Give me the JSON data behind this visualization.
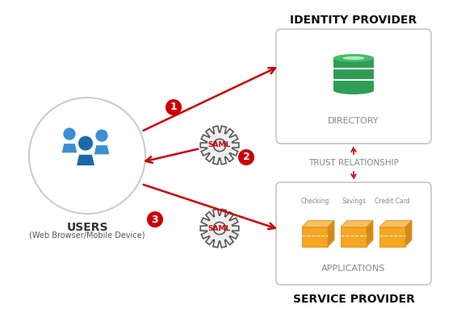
{
  "background_color": "#ffffff",
  "title_identity": "IDENTITY PROVIDER",
  "title_service": "SERVICE PROVIDER",
  "users_label": "USERS",
  "users_sublabel": "(Web Browser/Mobile Device)",
  "directory_label": "DIRECTORY",
  "applications_label": "APPLICATIONS",
  "trust_label": "TRUST RELATIONSHIP",
  "saml_label": "SAML",
  "app_labels": [
    "Checking",
    "Savings",
    "Credit Card"
  ],
  "arrow_color": "#cc0000",
  "gear_color": "#5a5a5a",
  "user_color_light": "#3b8fd4",
  "user_color_dark": "#1a6aaa",
  "db_color": "#2e9e54",
  "db_top_color": "#3dbf68",
  "app_color": "#f5a623",
  "app_top_color": "#f7c060",
  "app_dark_color": "#d4891a",
  "box_edge_color": "#bbbbbb",
  "number_bg": "#cc0000",
  "text_color": "#888888",
  "title_color": "#111111",
  "trust_line_color": "#cc0000",
  "users_circle_color": "#cccccc"
}
